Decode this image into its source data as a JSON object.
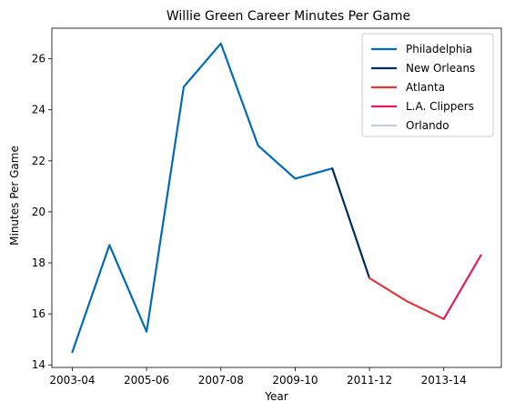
{
  "chart_data": {
    "type": "line",
    "title": "Willie Green Career Minutes Per Game",
    "xlabel": "Year",
    "ylabel": "Minutes Per Game",
    "x": [
      "2003-04",
      "2004-05",
      "2005-06",
      "2006-07",
      "2007-08",
      "2008-09",
      "2009-10",
      "2010-11",
      "2011-12",
      "2012-13",
      "2013-14",
      "2014-15"
    ],
    "x_tick_labels": [
      "2003-04",
      "2005-06",
      "2007-08",
      "2009-10",
      "2011-12",
      "2013-14"
    ],
    "ylim": [
      13.9,
      27.2
    ],
    "y_ticks": [
      14,
      16,
      18,
      20,
      22,
      24,
      26
    ],
    "legend_position": "top-right",
    "grid": false,
    "series": [
      {
        "name": "Philadelphia",
        "color": "#006bb6",
        "points": [
          [
            "2003-04",
            14.5
          ],
          [
            "2004-05",
            18.7
          ],
          [
            "2005-06",
            15.3
          ],
          [
            "2006-07",
            24.9
          ],
          [
            "2007-08",
            26.6
          ],
          [
            "2008-09",
            22.6
          ],
          [
            "2009-10",
            21.3
          ],
          [
            "2010-11",
            21.7
          ]
        ]
      },
      {
        "name": "New Orleans",
        "color": "#002b5c",
        "points": [
          [
            "2010-11",
            21.7
          ],
          [
            "2011-12",
            17.4
          ]
        ]
      },
      {
        "name": "Atlanta",
        "color": "#e03a3e",
        "points": [
          [
            "2011-12",
            17.4
          ],
          [
            "2012-13",
            16.5
          ],
          [
            "2013-14",
            15.8
          ]
        ]
      },
      {
        "name": "L.A. Clippers",
        "color": "#e31c5e",
        "points": [
          [
            "2013-14",
            15.8
          ],
          [
            "2014-15",
            18.3
          ]
        ]
      },
      {
        "name": "Orlando",
        "color": "#c4ced4",
        "points": []
      }
    ]
  }
}
